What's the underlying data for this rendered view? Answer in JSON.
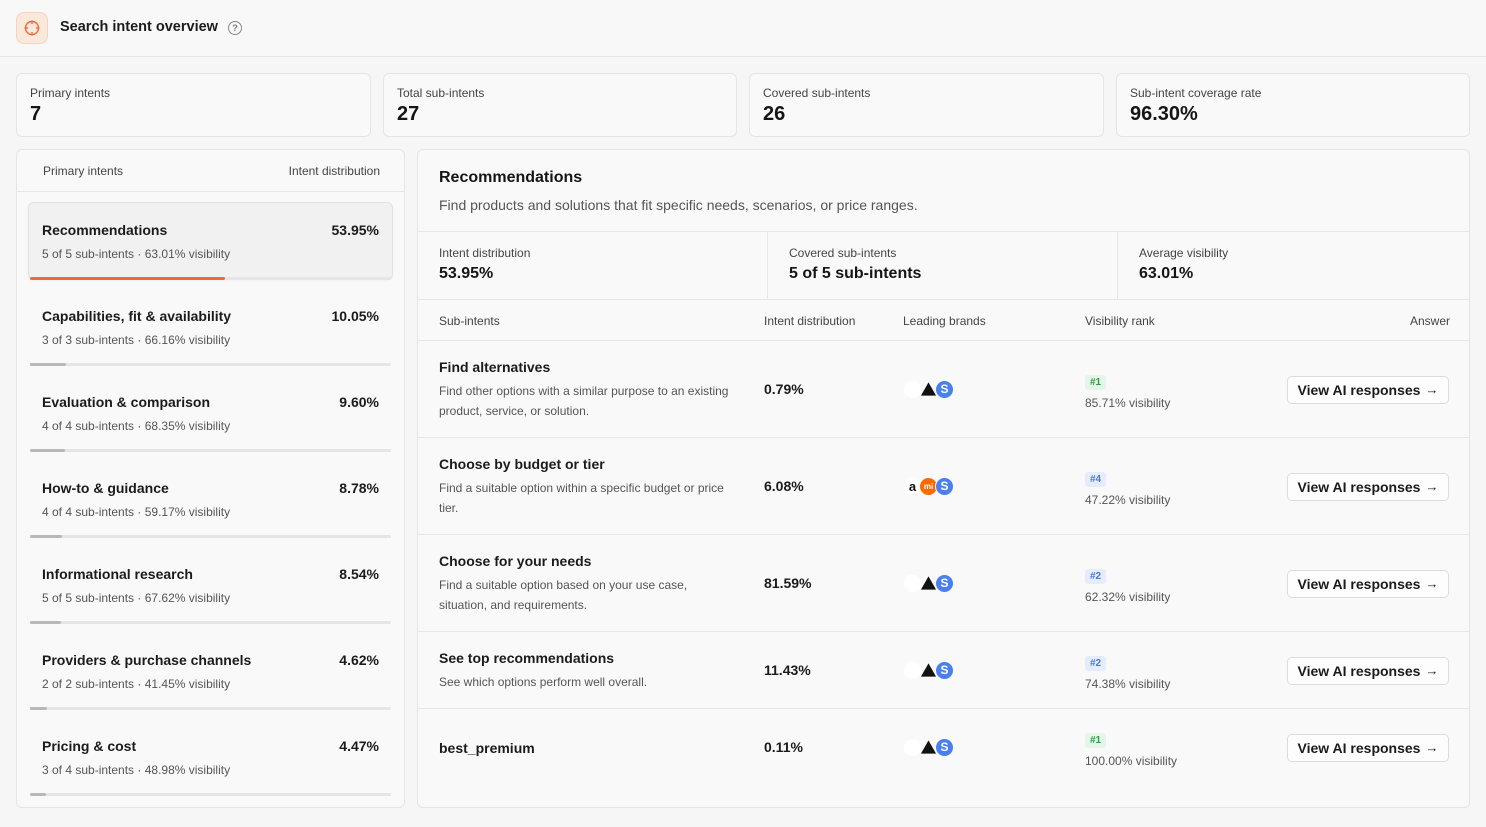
{
  "header": {
    "title": "Search intent overview",
    "help": "?"
  },
  "stats": [
    {
      "label": "Primary intents",
      "value": "7"
    },
    {
      "label": "Total sub-intents",
      "value": "27"
    },
    {
      "label": "Covered sub-intents",
      "value": "26"
    },
    {
      "label": "Sub-intent coverage rate",
      "value": "96.30%"
    }
  ],
  "left": {
    "col1": "Primary intents",
    "col2": "Intent distribution",
    "items": [
      {
        "name": "Recommendations",
        "pct": "53.95%",
        "sub": "5 of 5 sub-intents · 63.01% visibility",
        "fill": 0.54
      },
      {
        "name": "Capabilities, fit & availability",
        "pct": "10.05%",
        "sub": "3 of 3 sub-intents · 66.16% visibility",
        "fill": 0.1
      },
      {
        "name": "Evaluation & comparison",
        "pct": "9.60%",
        "sub": "4 of 4 sub-intents · 68.35% visibility",
        "fill": 0.096
      },
      {
        "name": "How-to & guidance",
        "pct": "8.78%",
        "sub": "4 of 4 sub-intents · 59.17% visibility",
        "fill": 0.088
      },
      {
        "name": "Informational research",
        "pct": "8.54%",
        "sub": "5 of 5 sub-intents · 67.62% visibility",
        "fill": 0.085
      },
      {
        "name": "Providers & purchase channels",
        "pct": "4.62%",
        "sub": "2 of 2 sub-intents · 41.45% visibility",
        "fill": 0.046
      },
      {
        "name": "Pricing & cost",
        "pct": "4.47%",
        "sub": "3 of 4 sub-intents · 48.98% visibility",
        "fill": 0.045
      }
    ]
  },
  "detail": {
    "title": "Recommendations",
    "desc": "Find products and solutions that fit specific needs, scenarios, or price ranges.",
    "metrics": [
      {
        "label": "Intent distribution",
        "value": "53.95%"
      },
      {
        "label": "Covered sub-intents",
        "value": "5 of 5 sub-intents"
      },
      {
        "label": "Average visibility",
        "value": "63.01%"
      }
    ],
    "columns": {
      "sub": "Sub-intents",
      "dist": "Intent distribution",
      "brands": "Leading brands",
      "rank": "Visibility rank",
      "answer": "Answer"
    },
    "button_label": "View AI responses",
    "brand_glyphs": {
      "apple": "",
      "s": "S",
      "a": "a",
      "mi": "mi"
    },
    "rows": [
      {
        "name": "Find alternatives",
        "desc": "Find other options with a similar purpose to an existing product, service, or solution.",
        "dist": "0.79%",
        "brands": [
          "apple-logo-icon",
          "triangle-logo-icon",
          "s-logo-icon"
        ],
        "rank": "#1",
        "vis": "85.71% visibility",
        "top": true
      },
      {
        "name": "Choose by budget or tier",
        "desc": "Find a suitable option within a specific budget or price tier.",
        "dist": "6.08%",
        "brands": [
          "a-logo-icon",
          "mi-logo-icon",
          "s-logo-icon"
        ],
        "rank": "#4",
        "vis": "47.22% visibility",
        "top": false
      },
      {
        "name": "Choose for your needs",
        "desc": "Find a suitable option based on your use case, situation, and requirements.",
        "dist": "81.59%",
        "brands": [
          "apple-logo-icon",
          "triangle-logo-icon",
          "s-logo-icon"
        ],
        "rank": "#2",
        "vis": "62.32% visibility",
        "top": false
      },
      {
        "name": "See top recommendations",
        "desc": "See which options perform well overall.",
        "dist": "11.43%",
        "brands": [
          "apple-logo-icon",
          "triangle-logo-icon",
          "s-logo-icon"
        ],
        "rank": "#2",
        "vis": "74.38% visibility",
        "top": false
      },
      {
        "name": "best_premium",
        "desc": "",
        "dist": "0.11%",
        "brands": [
          "apple-logo-icon",
          "triangle-logo-icon",
          "s-logo-icon"
        ],
        "rank": "#1",
        "vis": "100.00% visibility",
        "top": true
      }
    ]
  },
  "colors": {
    "accent": "#ef6a3a",
    "bar_gray": "#b8b8b8",
    "rank_top": "#2f9c47",
    "rank_other": "#4a78d6"
  }
}
